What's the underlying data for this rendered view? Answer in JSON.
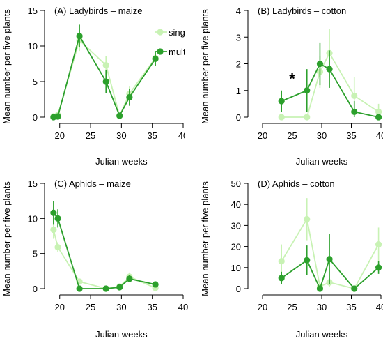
{
  "figure": {
    "colors": {
      "single": "#c8f2b4",
      "multi": "#2ca02c",
      "axis": "#000000"
    }
  },
  "chart_data": [
    {
      "type": "line",
      "title": "(A) Ladybirds – maize",
      "xlabel": "Julian weeks",
      "ylabel": "Mean number per five plants",
      "xlim": [
        18,
        40
      ],
      "ylim": [
        0,
        15
      ],
      "xticks": [
        20,
        25,
        30,
        35,
        40
      ],
      "yticks": [
        0,
        5,
        10,
        15
      ],
      "legend": {
        "position": "top-right",
        "entries": [
          "sing",
          "mult"
        ]
      },
      "series": [
        {
          "name": "sing",
          "color": "#c8f2b4",
          "x": [
            19,
            19.7,
            23.2,
            27.5,
            29.7,
            31.3,
            35.5
          ],
          "y": [
            0.1,
            0.3,
            10.8,
            7.3,
            0.2,
            3.3,
            8.3
          ],
          "err": [
            0.2,
            0.3,
            1.5,
            1.3,
            0.3,
            1.0,
            1.0
          ]
        },
        {
          "name": "mult",
          "color": "#2ca02c",
          "x": [
            19,
            19.7,
            23.2,
            27.5,
            29.7,
            31.3,
            35.5
          ],
          "y": [
            0.0,
            0.1,
            11.4,
            5.0,
            0.2,
            2.8,
            8.2
          ],
          "err": [
            0.2,
            0.2,
            1.6,
            1.6,
            0.3,
            1.2,
            1.0
          ]
        }
      ]
    },
    {
      "type": "line",
      "title": "(B) Ladybirds – cotton",
      "xlabel": "Julian weeks",
      "ylabel": "Mean number per five plants",
      "xlim": [
        18,
        40
      ],
      "ylim": [
        0,
        4
      ],
      "xticks": [
        20,
        25,
        30,
        35,
        40
      ],
      "yticks": [
        0,
        1,
        2,
        3,
        4
      ],
      "annotations": [
        {
          "text": "*",
          "x": 25,
          "y": 1.45
        }
      ],
      "series": [
        {
          "name": "sing",
          "color": "#c8f2b4",
          "x": [
            23.2,
            27.5,
            29.7,
            31.3,
            35.5,
            39.6
          ],
          "y": [
            0.0,
            0.0,
            1.7,
            2.4,
            0.8,
            0.2
          ],
          "err": [
            0.05,
            0.05,
            0.6,
            0.9,
            0.7,
            0.3
          ]
        },
        {
          "name": "mult",
          "color": "#2ca02c",
          "x": [
            23.2,
            27.5,
            29.7,
            31.3,
            35.5,
            39.6
          ],
          "y": [
            0.6,
            1.0,
            2.0,
            1.8,
            0.2,
            0.0
          ],
          "err": [
            0.4,
            0.8,
            0.8,
            0.7,
            0.4,
            0.1
          ]
        }
      ]
    },
    {
      "type": "line",
      "title": "(C) Aphids – maize",
      "xlabel": "Julian weeks",
      "ylabel": "Mean number per five plants",
      "xlim": [
        18,
        40
      ],
      "ylim": [
        0,
        15
      ],
      "xticks": [
        20,
        25,
        30,
        35,
        40
      ],
      "yticks": [
        0,
        5,
        10,
        15
      ],
      "series": [
        {
          "name": "sing",
          "color": "#c8f2b4",
          "x": [
            19,
            19.7,
            23.2,
            27.5,
            29.7,
            31.3,
            35.5
          ],
          "y": [
            8.4,
            5.9,
            1.0,
            0.0,
            0.3,
            1.7,
            0.1
          ],
          "err": [
            1.3,
            0.7,
            0.4,
            0.1,
            0.3,
            0.6,
            0.2
          ]
        },
        {
          "name": "mult",
          "color": "#2ca02c",
          "x": [
            19,
            19.7,
            23.2,
            27.5,
            29.7,
            31.3,
            35.5
          ],
          "y": [
            10.8,
            10.0,
            0.0,
            0.0,
            0.2,
            1.4,
            0.6
          ],
          "err": [
            1.7,
            1.3,
            0.3,
            0.1,
            0.3,
            0.5,
            0.3
          ]
        }
      ]
    },
    {
      "type": "line",
      "title": "(D) Aphids – cotton",
      "xlabel": "Julian weeks",
      "ylabel": "Mean number per five plants",
      "xlim": [
        18,
        40
      ],
      "ylim": [
        0,
        50
      ],
      "xticks": [
        20,
        25,
        30,
        35,
        40
      ],
      "yticks": [
        0,
        10,
        20,
        30,
        40,
        50
      ],
      "series": [
        {
          "name": "sing",
          "color": "#c8f2b4",
          "x": [
            23.2,
            27.5,
            29.7,
            31.3,
            35.5,
            39.6
          ],
          "y": [
            13,
            33,
            1,
            3,
            0,
            21
          ],
          "err": [
            8,
            10,
            1,
            2,
            0.5,
            8
          ]
        },
        {
          "name": "mult",
          "color": "#2ca02c",
          "x": [
            23.2,
            27.5,
            29.7,
            31.3,
            35.5,
            39.6
          ],
          "y": [
            5,
            13.5,
            0,
            14,
            0,
            10
          ],
          "err": [
            3,
            7,
            0.5,
            12,
            0.5,
            3
          ]
        }
      ]
    }
  ]
}
